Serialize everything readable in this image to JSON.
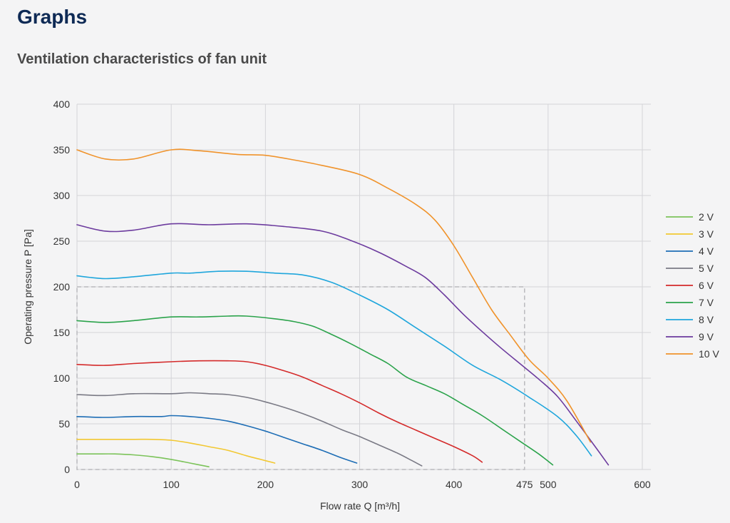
{
  "page": {
    "heading": "Graphs"
  },
  "chart_data": {
    "type": "line",
    "title": "Ventilation characteristics of fan unit",
    "xlabel": "Flow rate Q [m³/h]",
    "ylabel": "Operating pressure P [Pa]",
    "xlim": [
      0,
      600
    ],
    "ylim": [
      0,
      400
    ],
    "x_ticks": [
      0,
      100,
      200,
      300,
      400,
      475,
      500,
      600
    ],
    "y_ticks": [
      0,
      50,
      100,
      150,
      200,
      250,
      300,
      350,
      400
    ],
    "grid": true,
    "legend_position": "right",
    "reference_box": {
      "x_max": 475,
      "y_max": 200,
      "style": "dashed"
    },
    "series": [
      {
        "name": "2 V",
        "color": "#7cc35a",
        "points": [
          [
            0,
            17
          ],
          [
            20,
            17
          ],
          [
            40,
            17
          ],
          [
            60,
            16
          ],
          [
            80,
            14
          ],
          [
            100,
            11
          ],
          [
            120,
            7
          ],
          [
            140,
            3
          ]
        ]
      },
      {
        "name": "3 V",
        "color": "#f2c832",
        "points": [
          [
            0,
            33
          ],
          [
            30,
            33
          ],
          [
            60,
            33
          ],
          [
            80,
            33
          ],
          [
            100,
            32
          ],
          [
            120,
            29
          ],
          [
            140,
            25
          ],
          [
            160,
            21
          ],
          [
            180,
            15
          ],
          [
            195,
            11
          ],
          [
            210,
            7
          ]
        ]
      },
      {
        "name": "4 V",
        "color": "#1d6db5",
        "points": [
          [
            0,
            58
          ],
          [
            30,
            57
          ],
          [
            60,
            58
          ],
          [
            90,
            58
          ],
          [
            100,
            59
          ],
          [
            120,
            58
          ],
          [
            140,
            56
          ],
          [
            160,
            53
          ],
          [
            180,
            48
          ],
          [
            200,
            42
          ],
          [
            220,
            35
          ],
          [
            240,
            28
          ],
          [
            260,
            21
          ],
          [
            280,
            13
          ],
          [
            297,
            7
          ]
        ]
      },
      {
        "name": "5 V",
        "color": "#7a7a85",
        "points": [
          [
            0,
            82
          ],
          [
            30,
            81
          ],
          [
            60,
            83
          ],
          [
            100,
            83
          ],
          [
            120,
            84
          ],
          [
            140,
            83
          ],
          [
            160,
            82
          ],
          [
            180,
            79
          ],
          [
            200,
            74
          ],
          [
            220,
            68
          ],
          [
            240,
            61
          ],
          [
            260,
            53
          ],
          [
            280,
            44
          ],
          [
            300,
            36
          ],
          [
            320,
            27
          ],
          [
            340,
            18
          ],
          [
            355,
            10
          ],
          [
            366,
            4
          ]
        ]
      },
      {
        "name": "6 V",
        "color": "#d42a2a",
        "points": [
          [
            0,
            115
          ],
          [
            30,
            114
          ],
          [
            60,
            116
          ],
          [
            100,
            118
          ],
          [
            130,
            119
          ],
          [
            160,
            119
          ],
          [
            180,
            118
          ],
          [
            200,
            114
          ],
          [
            220,
            108
          ],
          [
            240,
            101
          ],
          [
            260,
            92
          ],
          [
            280,
            83
          ],
          [
            300,
            73
          ],
          [
            320,
            62
          ],
          [
            340,
            52
          ],
          [
            360,
            43
          ],
          [
            380,
            34
          ],
          [
            400,
            25
          ],
          [
            420,
            15
          ],
          [
            430,
            8
          ]
        ]
      },
      {
        "name": "7 V",
        "color": "#2ba34b",
        "points": [
          [
            0,
            163
          ],
          [
            30,
            161
          ],
          [
            60,
            163
          ],
          [
            100,
            167
          ],
          [
            130,
            167
          ],
          [
            160,
            168
          ],
          [
            180,
            168
          ],
          [
            210,
            165
          ],
          [
            230,
            162
          ],
          [
            250,
            157
          ],
          [
            270,
            148
          ],
          [
            290,
            138
          ],
          [
            310,
            127
          ],
          [
            330,
            116
          ],
          [
            350,
            101
          ],
          [
            370,
            92
          ],
          [
            390,
            83
          ],
          [
            410,
            71
          ],
          [
            430,
            59
          ],
          [
            450,
            45
          ],
          [
            470,
            31
          ],
          [
            490,
            17
          ],
          [
            505,
            5
          ]
        ]
      },
      {
        "name": "8 V",
        "color": "#1fa6dc",
        "points": [
          [
            0,
            212
          ],
          [
            30,
            209
          ],
          [
            60,
            211
          ],
          [
            100,
            215
          ],
          [
            120,
            215
          ],
          [
            150,
            217
          ],
          [
            180,
            217
          ],
          [
            210,
            215
          ],
          [
            240,
            213
          ],
          [
            270,
            205
          ],
          [
            300,
            191
          ],
          [
            330,
            175
          ],
          [
            360,
            155
          ],
          [
            390,
            135
          ],
          [
            420,
            114
          ],
          [
            450,
            98
          ],
          [
            480,
            79
          ],
          [
            510,
            58
          ],
          [
            530,
            37
          ],
          [
            546,
            15
          ]
        ]
      },
      {
        "name": "9 V",
        "color": "#6c3b9e",
        "points": [
          [
            0,
            268
          ],
          [
            30,
            261
          ],
          [
            60,
            262
          ],
          [
            100,
            269
          ],
          [
            140,
            268
          ],
          [
            180,
            269
          ],
          [
            220,
            266
          ],
          [
            260,
            261
          ],
          [
            290,
            251
          ],
          [
            320,
            238
          ],
          [
            350,
            222
          ],
          [
            370,
            210
          ],
          [
            390,
            191
          ],
          [
            410,
            170
          ],
          [
            430,
            151
          ],
          [
            450,
            133
          ],
          [
            470,
            116
          ],
          [
            490,
            99
          ],
          [
            510,
            80
          ],
          [
            530,
            53
          ],
          [
            550,
            25
          ],
          [
            564,
            5
          ]
        ]
      },
      {
        "name": "10 V",
        "color": "#f0932b",
        "points": [
          [
            0,
            350
          ],
          [
            30,
            340
          ],
          [
            60,
            340
          ],
          [
            100,
            350
          ],
          [
            130,
            349
          ],
          [
            170,
            345
          ],
          [
            200,
            344
          ],
          [
            230,
            339
          ],
          [
            260,
            333
          ],
          [
            300,
            323
          ],
          [
            330,
            308
          ],
          [
            360,
            290
          ],
          [
            380,
            273
          ],
          [
            400,
            245
          ],
          [
            420,
            210
          ],
          [
            440,
            175
          ],
          [
            460,
            147
          ],
          [
            480,
            120
          ],
          [
            500,
            100
          ],
          [
            520,
            75
          ],
          [
            545,
            30
          ]
        ]
      }
    ]
  }
}
